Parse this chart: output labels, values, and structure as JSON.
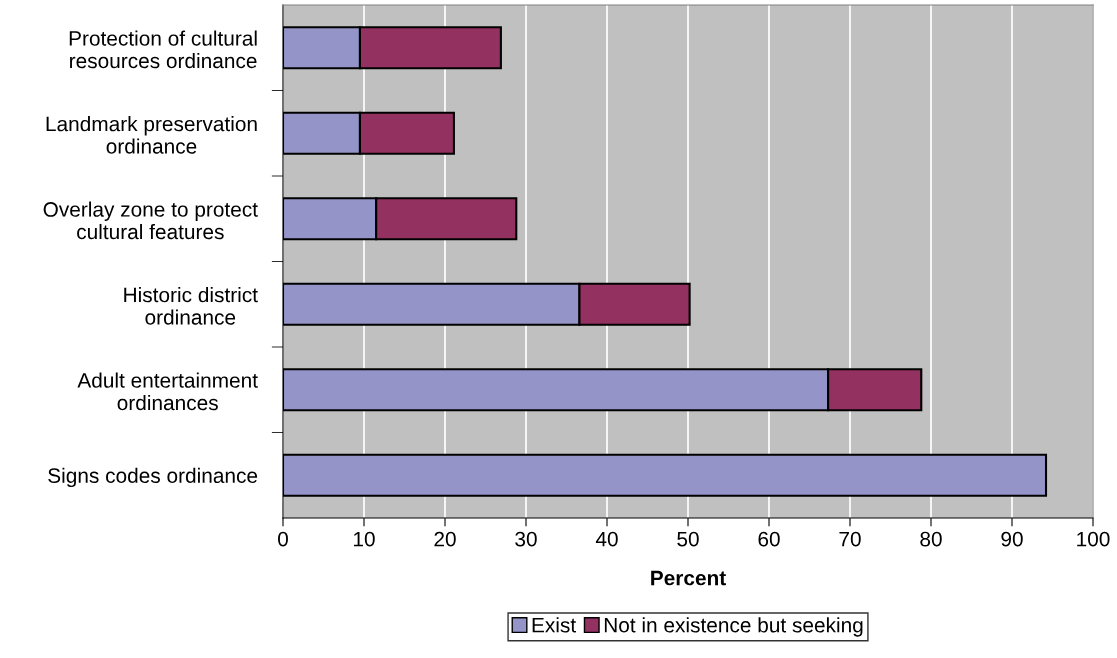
{
  "chart_data": {
    "type": "bar",
    "orientation": "horizontal",
    "stacked": true,
    "xlabel": "Percent",
    "categories": [
      "Protection of cultural\nresources ordinance",
      "Landmark preservation\nordinance",
      "Overlay zone to protect\ncultural features",
      "Historic district\nordinance",
      "Adult entertainment\nordinances",
      "Signs codes ordinance"
    ],
    "series": [
      {
        "name": "Exist",
        "color": "#9494c8",
        "values": [
          9.5,
          9.5,
          11.5,
          36.6,
          67.3,
          94.2
        ]
      },
      {
        "name": "Not in existence but seeking",
        "color": "#933160",
        "values": [
          17.4,
          11.6,
          17.3,
          13.6,
          11.5,
          null
        ]
      }
    ],
    "xlim": [
      0,
      100
    ],
    "xticks": [
      0,
      10,
      20,
      30,
      40,
      50,
      60,
      70,
      80,
      90,
      100
    ],
    "grid": "x",
    "legend": "bottom"
  }
}
